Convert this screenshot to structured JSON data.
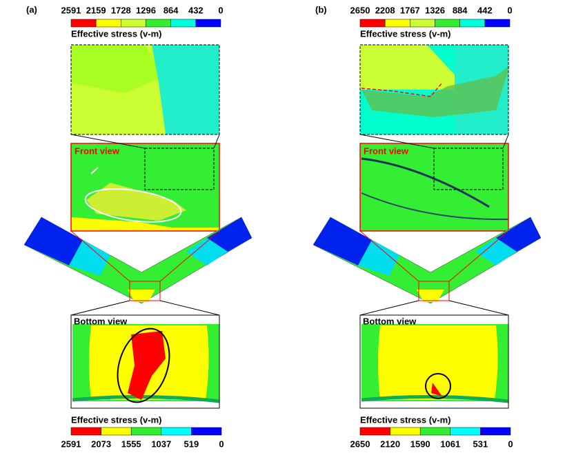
{
  "panels": [
    {
      "label": "(a)",
      "top_colorbar": {
        "title": "Effective stress (v-m)",
        "ticks": [
          "2591",
          "2159",
          "1728",
          "1296",
          "864",
          "432",
          "0"
        ]
      },
      "front_view": "Front view",
      "bottom_view": "Bottom view",
      "bottom_colorbar": {
        "title": "Effective stress (v-m)",
        "ticks": [
          "2591",
          "2073",
          "1555",
          "1037",
          "519",
          "0"
        ]
      }
    },
    {
      "label": "(b)",
      "top_colorbar": {
        "title": "Effective stress (v-m)",
        "ticks": [
          "2650",
          "2208",
          "1767",
          "1326",
          "884",
          "442",
          "0"
        ]
      },
      "front_view": "Front view",
      "bottom_view": "Bottom view",
      "bottom_colorbar": {
        "title": "Effective stress (v-m)",
        "ticks": [
          "2650",
          "2120",
          "1590",
          "1061",
          "531",
          "0"
        ]
      }
    }
  ]
}
